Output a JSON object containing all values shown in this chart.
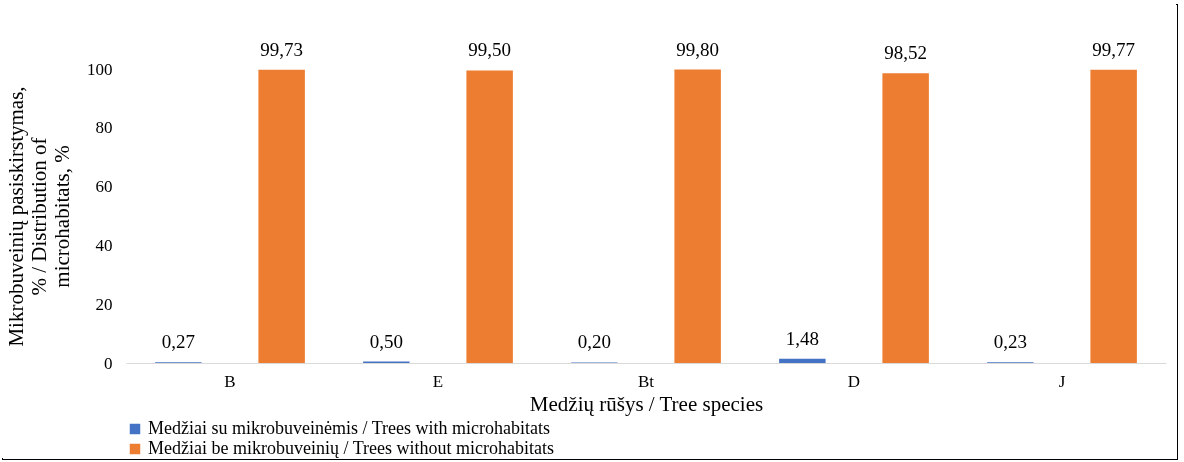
{
  "chart_data": {
    "type": "bar",
    "categories": [
      "B",
      "E",
      "Bt",
      "D",
      "J"
    ],
    "xlabel": "Medžių rūšys / Tree species",
    "ylabel": "Mikrobuveinių pasiskirstymas,\n% / Distribution of\nmicrohabitats, %",
    "series": [
      {
        "name": "Medžiai su mikrobuveinėmis / Trees with microhabitats",
        "color": "#4472c4",
        "values": [
          0.27,
          0.5,
          0.2,
          1.48,
          0.23
        ],
        "value_labels": [
          "0,27",
          "0,50",
          "0,20",
          "1,48",
          "0,23"
        ]
      },
      {
        "name": "Medžiai be mikrobuveinių / Trees without microhabitats",
        "color": "#ed7d31",
        "values": [
          99.73,
          99.5,
          99.8,
          98.52,
          99.77
        ],
        "value_labels": [
          "99,73",
          "99,50",
          "99,80",
          "98,52",
          "99,77"
        ]
      }
    ],
    "ylim": [
      0,
      100
    ],
    "yticks": [
      0,
      20,
      40,
      60,
      80,
      100
    ],
    "grid": false,
    "legend": "bottom"
  }
}
